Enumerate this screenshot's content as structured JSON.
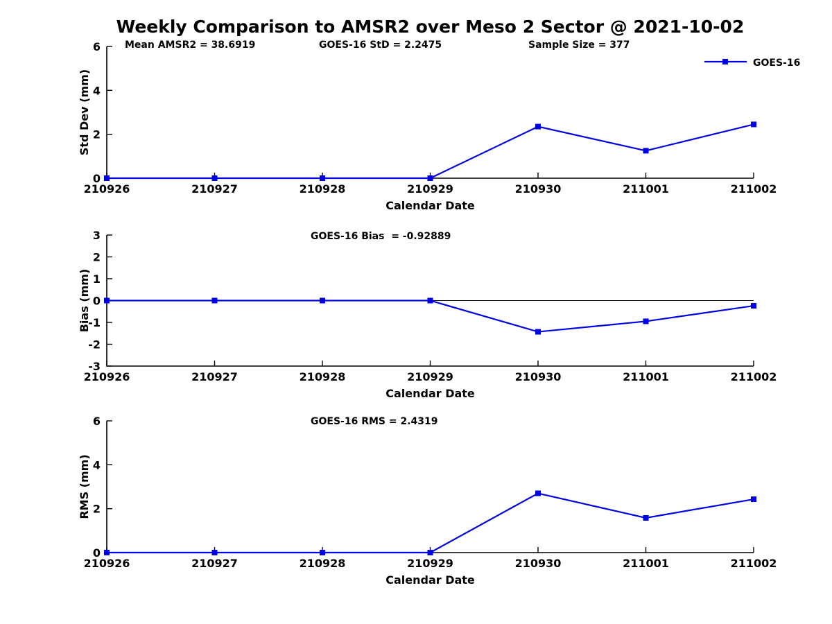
{
  "title": "Weekly Comparison to AMSR2 over Meso 2 Sector @ 2021-10-02",
  "accent_color": "#0000E6",
  "chart_data": [
    {
      "type": "line",
      "x_categories": [
        "210926",
        "210927",
        "210928",
        "210929",
        "210930",
        "211001",
        "211002"
      ],
      "xlabel": "Calendar Date",
      "ylabel": "Std Dev (mm)",
      "ylim": [
        0,
        6
      ],
      "yticks": [
        0,
        2,
        4,
        6
      ],
      "series": [
        {
          "name": "GOES-16",
          "color": "#0000E6",
          "marker": "square",
          "values": [
            0,
            0,
            0,
            0,
            2.35,
            1.25,
            2.45
          ]
        }
      ],
      "annotations": [
        "Mean AMSR2 = 38.6919",
        "GOES-16 StD = 2.2475",
        "Sample Size = 377"
      ],
      "legend": {
        "visible": true,
        "label": "GOES-16",
        "position": "top-right"
      },
      "zero_line": false,
      "grid": false
    },
    {
      "type": "line",
      "x_categories": [
        "210926",
        "210927",
        "210928",
        "210929",
        "210930",
        "211001",
        "211002"
      ],
      "xlabel": "Calendar Date",
      "ylabel": "Bias (mm)",
      "ylim": [
        -3,
        3
      ],
      "yticks": [
        -3,
        -2,
        -1,
        0,
        1,
        2,
        3
      ],
      "series": [
        {
          "name": "GOES-16",
          "color": "#0000E6",
          "marker": "square",
          "values": [
            0,
            0,
            0,
            0,
            -1.43,
            -0.95,
            -0.24
          ]
        }
      ],
      "annotations": [
        "GOES-16 Bias  = -0.92889"
      ],
      "legend": {
        "visible": false,
        "label": "GOES-16",
        "position": "top-right"
      },
      "zero_line": true,
      "grid": false
    },
    {
      "type": "line",
      "x_categories": [
        "210926",
        "210927",
        "210928",
        "210929",
        "210930",
        "211001",
        "211002"
      ],
      "xlabel": "Calendar Date",
      "ylabel": "RMS (mm)",
      "ylim": [
        0,
        6
      ],
      "yticks": [
        0,
        2,
        4,
        6
      ],
      "series": [
        {
          "name": "GOES-16",
          "color": "#0000E6",
          "marker": "square",
          "values": [
            0,
            0,
            0,
            0,
            2.7,
            1.58,
            2.43
          ]
        }
      ],
      "annotations": [
        "GOES-16 RMS = 2.4319"
      ],
      "legend": {
        "visible": false,
        "label": "GOES-16",
        "position": "top-right"
      },
      "zero_line": false,
      "grid": false
    }
  ]
}
